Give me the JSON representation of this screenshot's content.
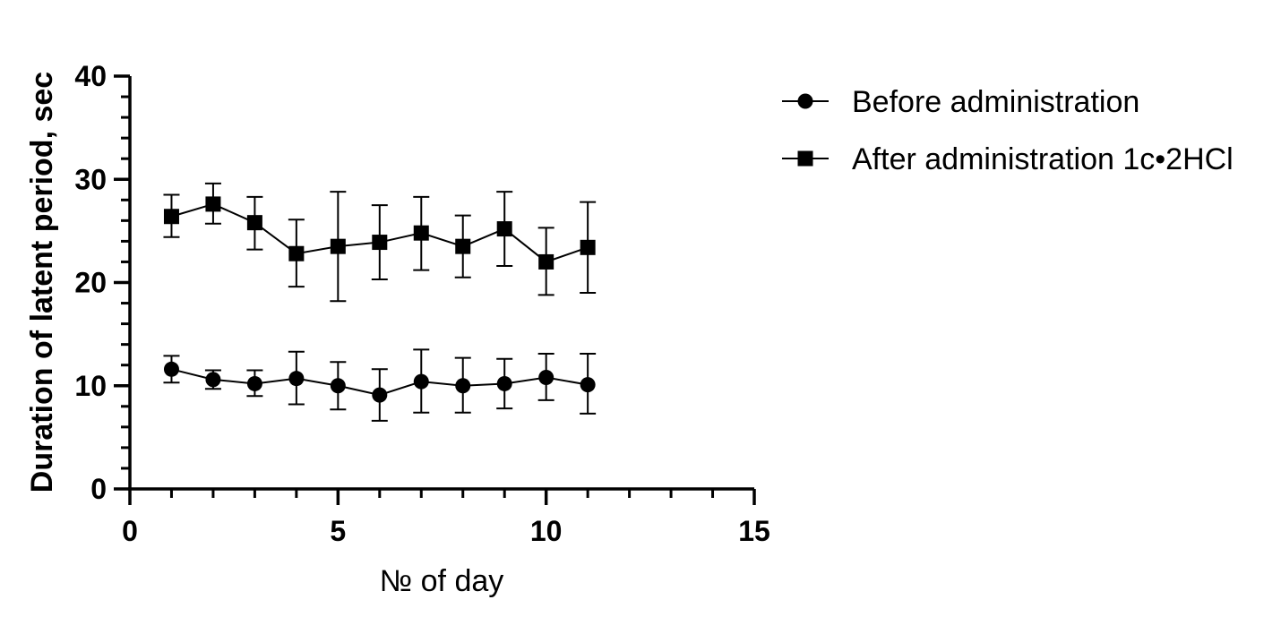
{
  "chart_data": {
    "type": "line",
    "title": "",
    "xlabel": "№ of day",
    "ylabel": "Duration of latent period, sec",
    "xlim": [
      0,
      15
    ],
    "ylim": [
      0,
      40
    ],
    "x_ticks": [
      0,
      5,
      10,
      15
    ],
    "x_tick_labels": [
      "0",
      "5",
      "10",
      "15"
    ],
    "y_ticks": [
      0,
      10,
      20,
      30,
      40
    ],
    "y_tick_labels": [
      "0",
      "10",
      "20",
      "30",
      "40"
    ],
    "grid": false,
    "legend_position": "top-right, outside plot",
    "x": [
      1,
      2,
      3,
      4,
      5,
      6,
      7,
      8,
      9,
      10,
      11
    ],
    "series": [
      {
        "name": "Before administration",
        "marker": "circle",
        "color": "#000000",
        "values": [
          11.6,
          10.6,
          10.2,
          10.7,
          10.0,
          9.1,
          10.4,
          10.0,
          10.2,
          10.8,
          10.1
        ],
        "error_upper": [
          12.9,
          11.5,
          11.5,
          13.3,
          12.3,
          11.6,
          13.5,
          12.7,
          12.6,
          13.1,
          13.1
        ],
        "error_lower": [
          10.3,
          9.7,
          9.0,
          8.2,
          7.7,
          6.6,
          7.4,
          7.4,
          7.8,
          8.6,
          7.3
        ]
      },
      {
        "name": "After administration 1c•2HCl",
        "marker": "square",
        "color": "#000000",
        "values": [
          26.4,
          27.6,
          25.8,
          22.8,
          23.5,
          23.9,
          24.8,
          23.5,
          25.2,
          22.0,
          23.4
        ],
        "error_upper": [
          28.5,
          29.6,
          28.3,
          26.1,
          28.8,
          27.5,
          28.3,
          26.5,
          28.8,
          25.3,
          27.8
        ],
        "error_lower": [
          24.4,
          25.7,
          23.2,
          19.6,
          18.2,
          20.3,
          21.2,
          20.5,
          21.6,
          18.8,
          19.0
        ]
      }
    ]
  }
}
